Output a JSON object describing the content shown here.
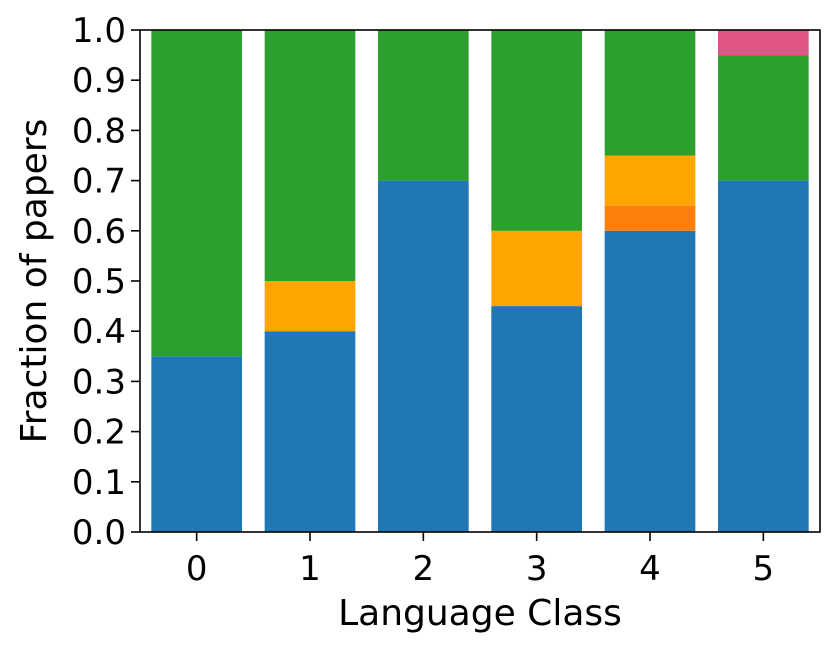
{
  "chart_data": {
    "type": "bar",
    "stacked": true,
    "title": "",
    "xlabel": "Language Class",
    "ylabel": "Fraction of papers",
    "ylim": [
      0,
      1
    ],
    "yticks": [
      0.0,
      0.1,
      0.2,
      0.3,
      0.4,
      0.5,
      0.6,
      0.7,
      0.8,
      0.9,
      1.0
    ],
    "categories": [
      "0",
      "1",
      "2",
      "3",
      "4",
      "5"
    ],
    "grid": false,
    "legend": "none",
    "series": [
      {
        "color": "#1f77b4",
        "values": [
          0.35,
          0.4,
          0.7,
          0.45,
          0.6,
          0.7
        ]
      },
      {
        "color": "#ff7f0e",
        "values": [
          0.0,
          0.0,
          0.0,
          0.0,
          0.05,
          0.0
        ]
      },
      {
        "color": "#ffa500",
        "values": [
          0.0,
          0.1,
          0.0,
          0.15,
          0.1,
          0.0
        ]
      },
      {
        "color": "#2ca02c",
        "values": [
          0.65,
          0.5,
          0.3,
          0.4,
          0.25,
          0.25
        ]
      },
      {
        "color": "#e05585",
        "values": [
          0.0,
          0.0,
          0.0,
          0.0,
          0.0,
          0.05
        ]
      }
    ]
  }
}
